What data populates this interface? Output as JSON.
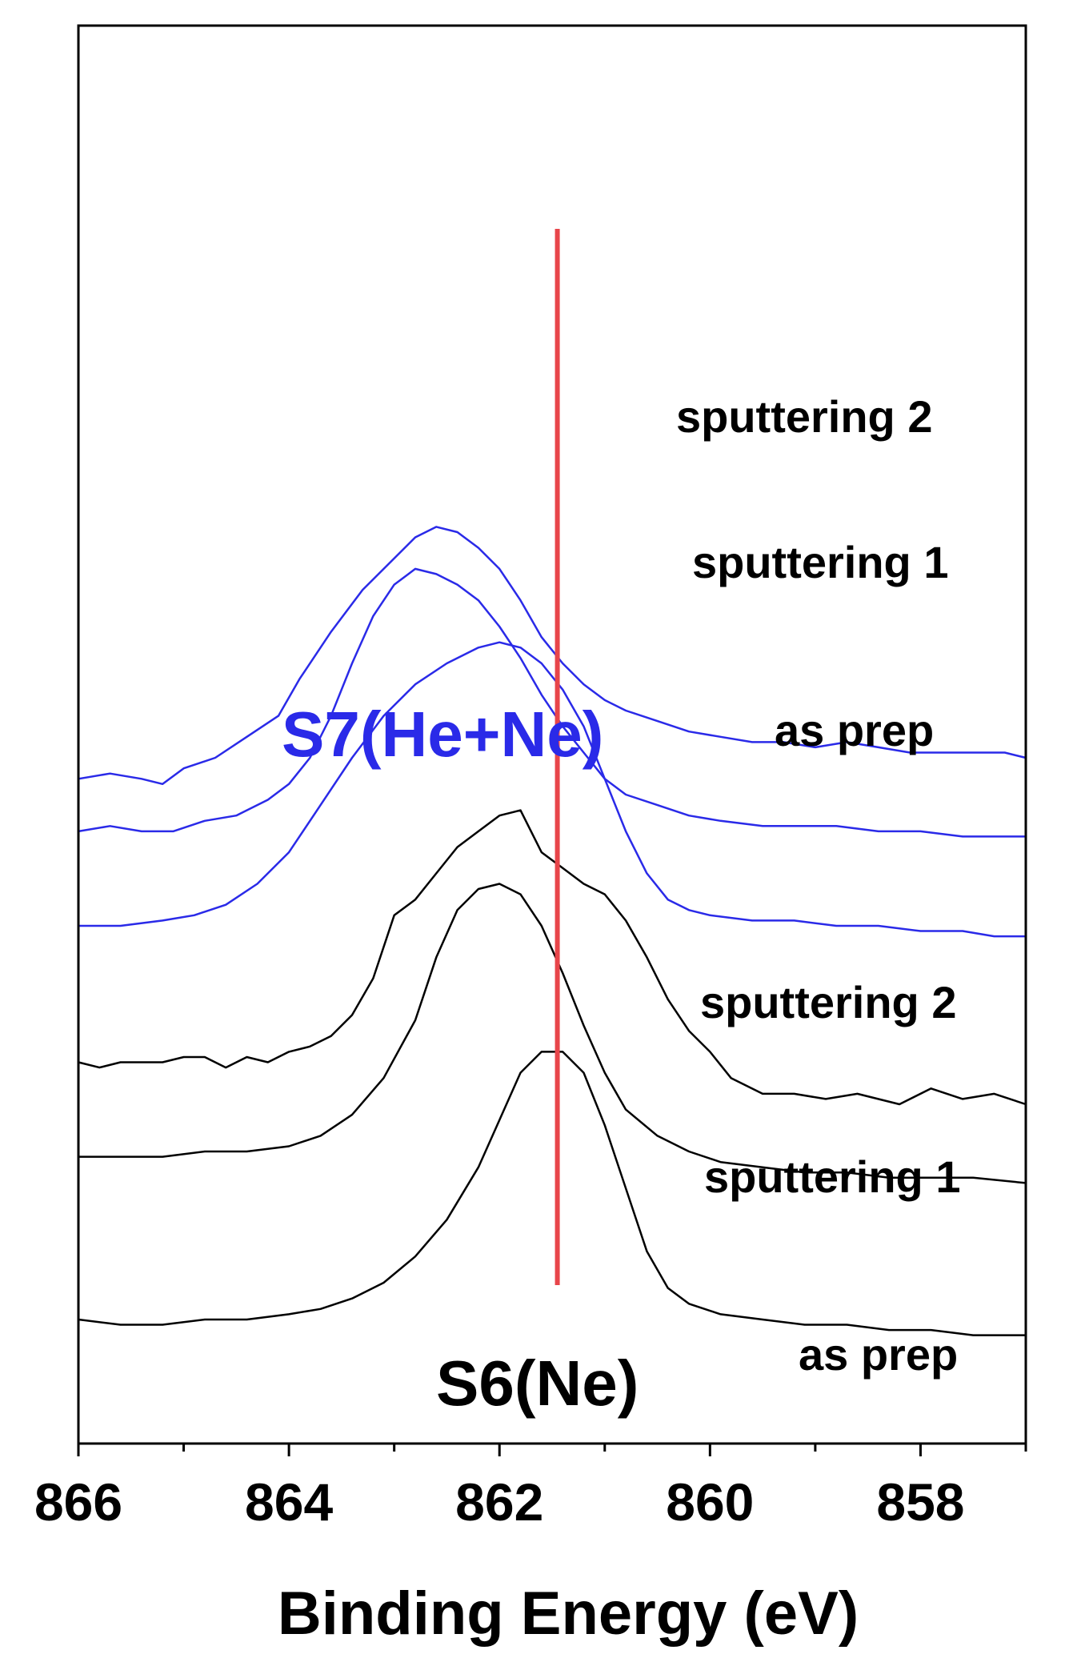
{
  "chart_data": {
    "type": "line",
    "xlabel": "Binding Energy (eV)",
    "xlim": [
      866,
      857
    ],
    "x_reversed": true,
    "x_ticks": [
      866,
      864,
      862,
      860,
      858
    ],
    "y_ticks_shown": false,
    "grid": false,
    "marker_line": {
      "x": 861.45,
      "color": "#e8454a"
    },
    "colors": {
      "S7": "#2a2ae8",
      "S6": "#000000"
    },
    "annotations": [
      {
        "text": "S7(He+Ne)",
        "color": "#2a2ae8"
      },
      {
        "text": "S6(Ne)",
        "color": "#000000"
      }
    ],
    "series": [
      {
        "name": "sputtering 2",
        "group": "S7",
        "points": [
          [
            866,
            0.62
          ],
          [
            865.7,
            0.63
          ],
          [
            865.4,
            0.62
          ],
          [
            865.2,
            0.61
          ],
          [
            865,
            0.64
          ],
          [
            864.7,
            0.66
          ],
          [
            864.4,
            0.7
          ],
          [
            864.1,
            0.74
          ],
          [
            863.9,
            0.81
          ],
          [
            863.6,
            0.9
          ],
          [
            863.3,
            0.98
          ],
          [
            863,
            1.04
          ],
          [
            862.8,
            1.08
          ],
          [
            862.6,
            1.1
          ],
          [
            862.4,
            1.09
          ],
          [
            862.2,
            1.06
          ],
          [
            862.0,
            1.02
          ],
          [
            861.8,
            0.96
          ],
          [
            861.6,
            0.89
          ],
          [
            861.4,
            0.84
          ],
          [
            861.2,
            0.8
          ],
          [
            861,
            0.77
          ],
          [
            860.8,
            0.75
          ],
          [
            860.5,
            0.73
          ],
          [
            860.2,
            0.71
          ],
          [
            859.9,
            0.7
          ],
          [
            859.6,
            0.69
          ],
          [
            859.3,
            0.69
          ],
          [
            859,
            0.68
          ],
          [
            858.7,
            0.69
          ],
          [
            858.4,
            0.68
          ],
          [
            858.1,
            0.67
          ],
          [
            857.8,
            0.67
          ],
          [
            857.5,
            0.67
          ],
          [
            857.2,
            0.67
          ],
          [
            857,
            0.66
          ]
        ]
      },
      {
        "name": "sputtering 1",
        "group": "S7",
        "points": [
          [
            866,
            0.52
          ],
          [
            865.7,
            0.53
          ],
          [
            865.4,
            0.52
          ],
          [
            865.1,
            0.52
          ],
          [
            864.8,
            0.54
          ],
          [
            864.5,
            0.55
          ],
          [
            864.2,
            0.58
          ],
          [
            864,
            0.61
          ],
          [
            863.8,
            0.66
          ],
          [
            863.6,
            0.74
          ],
          [
            863.4,
            0.84
          ],
          [
            863.2,
            0.93
          ],
          [
            863,
            0.99
          ],
          [
            862.8,
            1.02
          ],
          [
            862.6,
            1.01
          ],
          [
            862.4,
            0.99
          ],
          [
            862.2,
            0.96
          ],
          [
            862.0,
            0.91
          ],
          [
            861.8,
            0.85
          ],
          [
            861.6,
            0.78
          ],
          [
            861.4,
            0.72
          ],
          [
            861.2,
            0.67
          ],
          [
            861,
            0.62
          ],
          [
            860.8,
            0.59
          ],
          [
            860.5,
            0.57
          ],
          [
            860.2,
            0.55
          ],
          [
            859.9,
            0.54
          ],
          [
            859.5,
            0.53
          ],
          [
            859.2,
            0.53
          ],
          [
            858.8,
            0.53
          ],
          [
            858.4,
            0.52
          ],
          [
            858,
            0.52
          ],
          [
            857.6,
            0.51
          ],
          [
            857.3,
            0.51
          ],
          [
            857,
            0.51
          ]
        ]
      },
      {
        "name": "as prep",
        "group": "S7",
        "points": [
          [
            866,
            0.34
          ],
          [
            865.6,
            0.34
          ],
          [
            865.2,
            0.35
          ],
          [
            864.9,
            0.36
          ],
          [
            864.6,
            0.38
          ],
          [
            864.3,
            0.42
          ],
          [
            864.0,
            0.48
          ],
          [
            863.7,
            0.57
          ],
          [
            863.4,
            0.66
          ],
          [
            863.1,
            0.74
          ],
          [
            862.8,
            0.8
          ],
          [
            862.5,
            0.84
          ],
          [
            862.2,
            0.87
          ],
          [
            862.0,
            0.88
          ],
          [
            861.8,
            0.87
          ],
          [
            861.6,
            0.84
          ],
          [
            861.4,
            0.79
          ],
          [
            861.2,
            0.72
          ],
          [
            861,
            0.62
          ],
          [
            860.8,
            0.52
          ],
          [
            860.6,
            0.44
          ],
          [
            860.4,
            0.39
          ],
          [
            860.2,
            0.37
          ],
          [
            860,
            0.36
          ],
          [
            859.6,
            0.35
          ],
          [
            859.2,
            0.35
          ],
          [
            858.8,
            0.34
          ],
          [
            858.4,
            0.34
          ],
          [
            858,
            0.33
          ],
          [
            857.6,
            0.33
          ],
          [
            857.3,
            0.32
          ],
          [
            857,
            0.32
          ]
        ]
      },
      {
        "name": "sputtering 2",
        "group": "S6",
        "points": [
          [
            866,
            0.08
          ],
          [
            865.8,
            0.07
          ],
          [
            865.6,
            0.08
          ],
          [
            865.4,
            0.08
          ],
          [
            865.2,
            0.08
          ],
          [
            865,
            0.09
          ],
          [
            864.8,
            0.09
          ],
          [
            864.6,
            0.07
          ],
          [
            864.4,
            0.09
          ],
          [
            864.2,
            0.08
          ],
          [
            864.0,
            0.1
          ],
          [
            863.8,
            0.11
          ],
          [
            863.6,
            0.13
          ],
          [
            863.4,
            0.17
          ],
          [
            863.2,
            0.24
          ],
          [
            863.0,
            0.36
          ],
          [
            862.8,
            0.39
          ],
          [
            862.6,
            0.44
          ],
          [
            862.4,
            0.49
          ],
          [
            862.2,
            0.52
          ],
          [
            862.0,
            0.55
          ],
          [
            861.8,
            0.56
          ],
          [
            861.6,
            0.48
          ],
          [
            861.4,
            0.45
          ],
          [
            861.2,
            0.42
          ],
          [
            861,
            0.4
          ],
          [
            860.8,
            0.35
          ],
          [
            860.6,
            0.28
          ],
          [
            860.4,
            0.2
          ],
          [
            860.2,
            0.14
          ],
          [
            860,
            0.1
          ],
          [
            859.8,
            0.05
          ],
          [
            859.5,
            0.02
          ],
          [
            859.2,
            0.02
          ],
          [
            858.9,
            0.01
          ],
          [
            858.6,
            0.02
          ],
          [
            858.2,
            0.0
          ],
          [
            857.9,
            0.03
          ],
          [
            857.6,
            0.01
          ],
          [
            857.3,
            0.02
          ],
          [
            857,
            0.0
          ]
        ]
      },
      {
        "name": "sputtering 1",
        "group": "S6",
        "points": [
          [
            866,
            -0.1
          ],
          [
            865.6,
            -0.1
          ],
          [
            865.2,
            -0.1
          ],
          [
            864.8,
            -0.09
          ],
          [
            864.4,
            -0.09
          ],
          [
            864.0,
            -0.08
          ],
          [
            863.7,
            -0.06
          ],
          [
            863.4,
            -0.02
          ],
          [
            863.1,
            0.05
          ],
          [
            862.8,
            0.16
          ],
          [
            862.6,
            0.28
          ],
          [
            862.4,
            0.37
          ],
          [
            862.2,
            0.41
          ],
          [
            862.0,
            0.42
          ],
          [
            861.8,
            0.4
          ],
          [
            861.6,
            0.34
          ],
          [
            861.4,
            0.25
          ],
          [
            861.2,
            0.15
          ],
          [
            861,
            0.06
          ],
          [
            860.8,
            -0.01
          ],
          [
            860.5,
            -0.06
          ],
          [
            860.2,
            -0.09
          ],
          [
            859.9,
            -0.11
          ],
          [
            859.5,
            -0.12
          ],
          [
            859.1,
            -0.13
          ],
          [
            858.7,
            -0.13
          ],
          [
            858.3,
            -0.14
          ],
          [
            857.9,
            -0.14
          ],
          [
            857.5,
            -0.14
          ],
          [
            857,
            -0.15
          ]
        ]
      },
      {
        "name": "as prep",
        "group": "S6",
        "points": [
          [
            866,
            -0.41
          ],
          [
            865.6,
            -0.42
          ],
          [
            865.2,
            -0.42
          ],
          [
            864.8,
            -0.41
          ],
          [
            864.4,
            -0.41
          ],
          [
            864.0,
            -0.4
          ],
          [
            863.7,
            -0.39
          ],
          [
            863.4,
            -0.37
          ],
          [
            863.1,
            -0.34
          ],
          [
            862.8,
            -0.29
          ],
          [
            862.5,
            -0.22
          ],
          [
            862.2,
            -0.12
          ],
          [
            862.0,
            -0.03
          ],
          [
            861.8,
            0.06
          ],
          [
            861.6,
            0.1
          ],
          [
            861.4,
            0.1
          ],
          [
            861.2,
            0.06
          ],
          [
            861.0,
            -0.04
          ],
          [
            860.8,
            -0.16
          ],
          [
            860.6,
            -0.28
          ],
          [
            860.4,
            -0.35
          ],
          [
            860.2,
            -0.38
          ],
          [
            859.9,
            -0.4
          ],
          [
            859.5,
            -0.41
          ],
          [
            859.1,
            -0.42
          ],
          [
            858.7,
            -0.42
          ],
          [
            858.3,
            -0.43
          ],
          [
            857.9,
            -0.43
          ],
          [
            857.5,
            -0.44
          ],
          [
            857,
            -0.44
          ]
        ]
      }
    ]
  }
}
